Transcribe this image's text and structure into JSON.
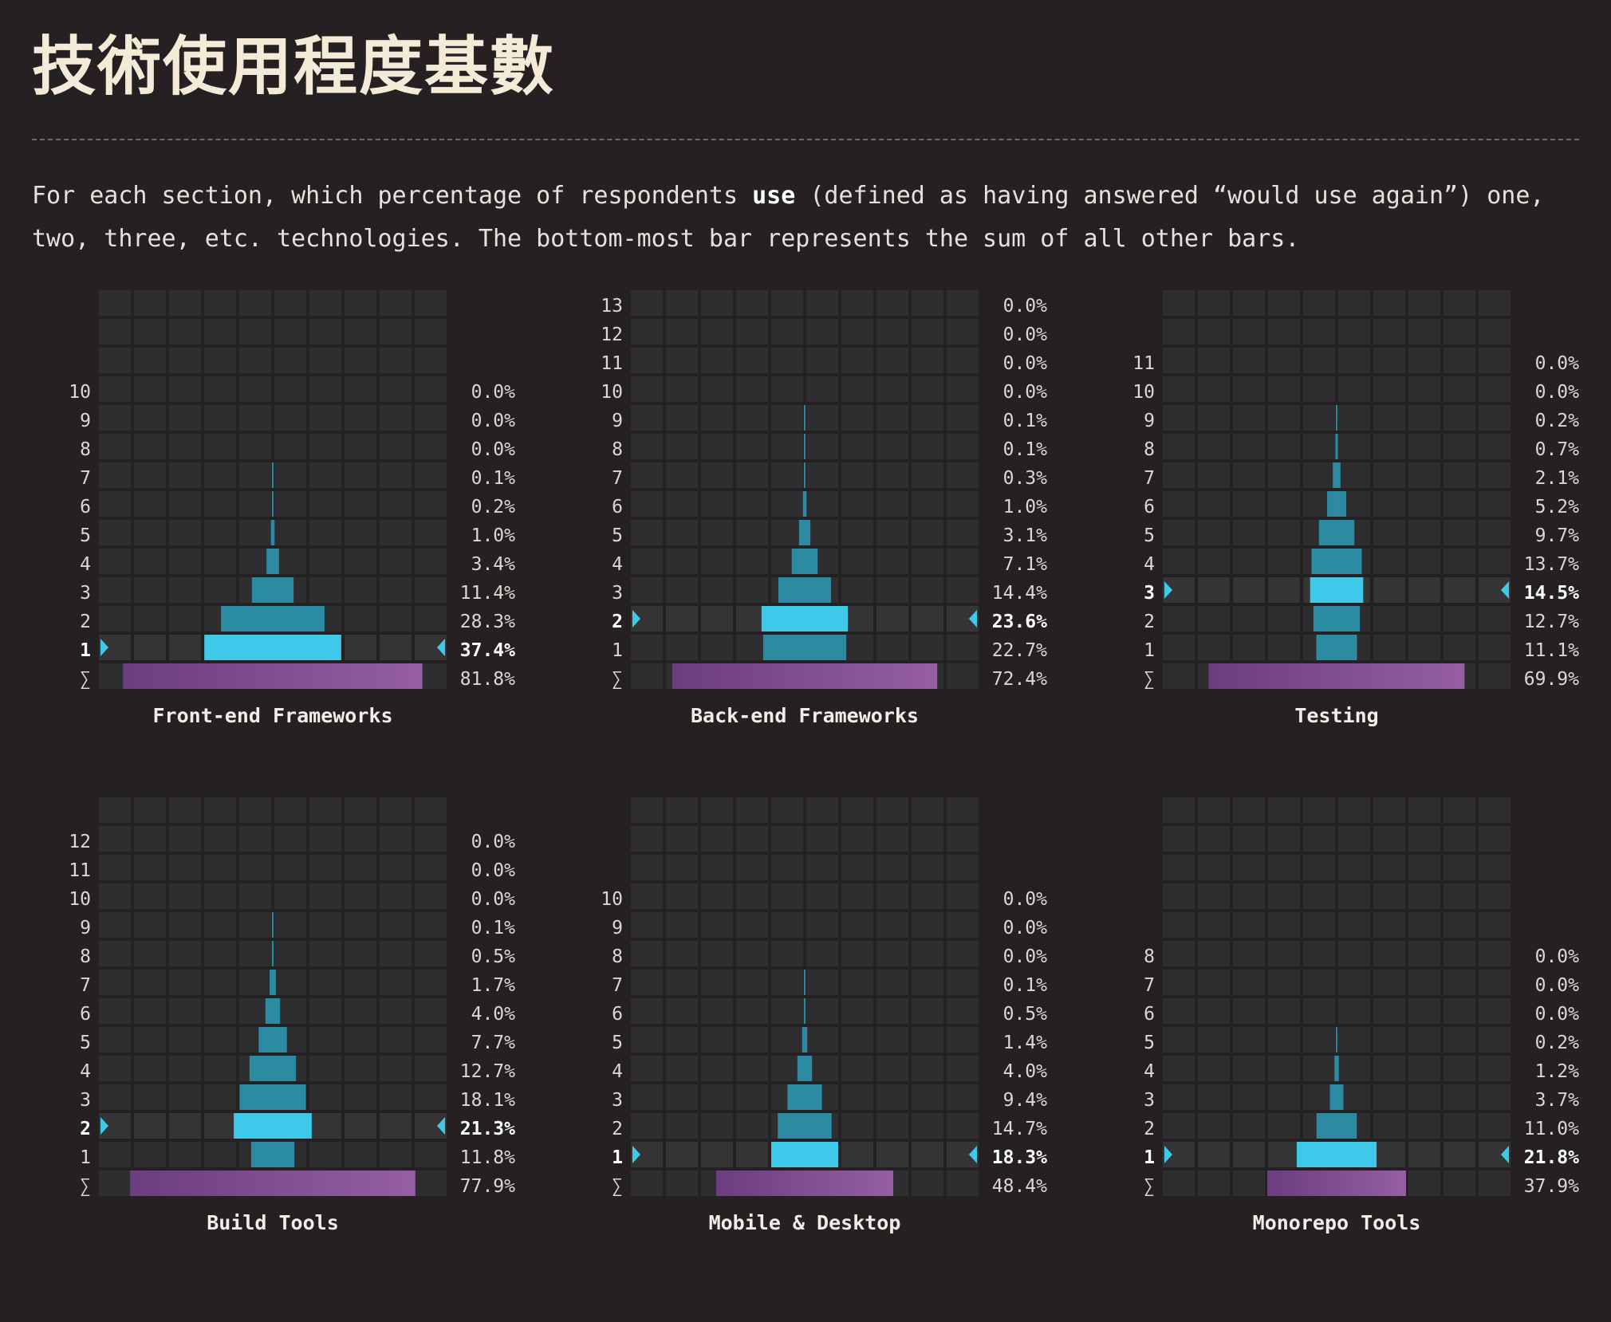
{
  "title": "技術使用程度基數",
  "description": {
    "before": "For each section, which percentage of respondents ",
    "bold": "use",
    "after": " (defined as having answered “would use again”) one, two, three, etc. technologies. The bottom-most bar represents the sum of all other bars."
  },
  "colors": {
    "background": "#252122",
    "cell": "#2e2d30",
    "cell_highlight": "#353538",
    "bar": "#2d8aa3",
    "bar_highlight": "#3fc9e8",
    "sum_bar_start": "#6c3d80",
    "sum_bar_end": "#955ea5",
    "marker": "#3fc9e8"
  },
  "chart_data": [
    {
      "type": "bar",
      "title": "Front-end Frameworks",
      "row_labels": [
        "",
        "",
        "",
        "10",
        "9",
        "8",
        "7",
        "6",
        "5",
        "4",
        "3",
        "2",
        "1",
        "∑"
      ],
      "value_labels": [
        "",
        "",
        "",
        "0.0%",
        "0.0%",
        "0.0%",
        "0.1%",
        "0.2%",
        "1.0%",
        "3.4%",
        "11.4%",
        "28.3%",
        "37.4%",
        "81.8%"
      ],
      "values": [
        null,
        null,
        null,
        0.0,
        0.0,
        0.0,
        0.1,
        0.2,
        1.0,
        3.4,
        11.4,
        28.3,
        37.4,
        81.8
      ],
      "highlight": "1"
    },
    {
      "type": "bar",
      "title": "Back-end Frameworks",
      "row_labels": [
        "13",
        "12",
        "11",
        "10",
        "9",
        "8",
        "7",
        "6",
        "5",
        "4",
        "3",
        "2",
        "1",
        "∑"
      ],
      "value_labels": [
        "0.0%",
        "0.0%",
        "0.0%",
        "0.0%",
        "0.1%",
        "0.1%",
        "0.3%",
        "1.0%",
        "3.1%",
        "7.1%",
        "14.4%",
        "23.6%",
        "22.7%",
        "72.4%"
      ],
      "values": [
        0.0,
        0.0,
        0.0,
        0.0,
        0.1,
        0.1,
        0.3,
        1.0,
        3.1,
        7.1,
        14.4,
        23.6,
        22.7,
        72.4
      ],
      "highlight": "2"
    },
    {
      "type": "bar",
      "title": "Testing",
      "row_labels": [
        "",
        "",
        "11",
        "10",
        "9",
        "8",
        "7",
        "6",
        "5",
        "4",
        "3",
        "2",
        "1",
        "∑"
      ],
      "value_labels": [
        "",
        "",
        "0.0%",
        "0.0%",
        "0.2%",
        "0.7%",
        "2.1%",
        "5.2%",
        "9.7%",
        "13.7%",
        "14.5%",
        "12.7%",
        "11.1%",
        "69.9%"
      ],
      "values": [
        null,
        null,
        0.0,
        0.0,
        0.2,
        0.7,
        2.1,
        5.2,
        9.7,
        13.7,
        14.5,
        12.7,
        11.1,
        69.9
      ],
      "highlight": "3"
    },
    {
      "type": "bar",
      "title": "Build Tools",
      "row_labels": [
        "",
        "12",
        "11",
        "10",
        "9",
        "8",
        "7",
        "6",
        "5",
        "4",
        "3",
        "2",
        "1",
        "∑"
      ],
      "value_labels": [
        "",
        "0.0%",
        "0.0%",
        "0.0%",
        "0.1%",
        "0.5%",
        "1.7%",
        "4.0%",
        "7.7%",
        "12.7%",
        "18.1%",
        "21.3%",
        "11.8%",
        "77.9%"
      ],
      "values": [
        null,
        0.0,
        0.0,
        0.0,
        0.1,
        0.5,
        1.7,
        4.0,
        7.7,
        12.7,
        18.1,
        21.3,
        11.8,
        77.9
      ],
      "highlight": "2"
    },
    {
      "type": "bar",
      "title": "Mobile & Desktop",
      "row_labels": [
        "",
        "",
        "",
        "10",
        "9",
        "8",
        "7",
        "6",
        "5",
        "4",
        "3",
        "2",
        "1",
        "∑"
      ],
      "value_labels": [
        "",
        "",
        "",
        "0.0%",
        "0.0%",
        "0.0%",
        "0.1%",
        "0.5%",
        "1.4%",
        "4.0%",
        "9.4%",
        "14.7%",
        "18.3%",
        "48.4%"
      ],
      "values": [
        null,
        null,
        null,
        0.0,
        0.0,
        0.0,
        0.1,
        0.5,
        1.4,
        4.0,
        9.4,
        14.7,
        18.3,
        48.4
      ],
      "highlight": "1"
    },
    {
      "type": "bar",
      "title": "Monorepo Tools",
      "row_labels": [
        "",
        "",
        "",
        "",
        "",
        "8",
        "7",
        "6",
        "5",
        "4",
        "3",
        "2",
        "1",
        "∑"
      ],
      "value_labels": [
        "",
        "",
        "",
        "",
        "",
        "0.0%",
        "0.0%",
        "0.0%",
        "0.2%",
        "1.2%",
        "3.7%",
        "11.0%",
        "21.8%",
        "37.9%"
      ],
      "values": [
        null,
        null,
        null,
        null,
        null,
        0.0,
        0.0,
        0.0,
        0.2,
        1.2,
        3.7,
        11.0,
        21.8,
        37.9
      ],
      "highlight": "1"
    }
  ]
}
